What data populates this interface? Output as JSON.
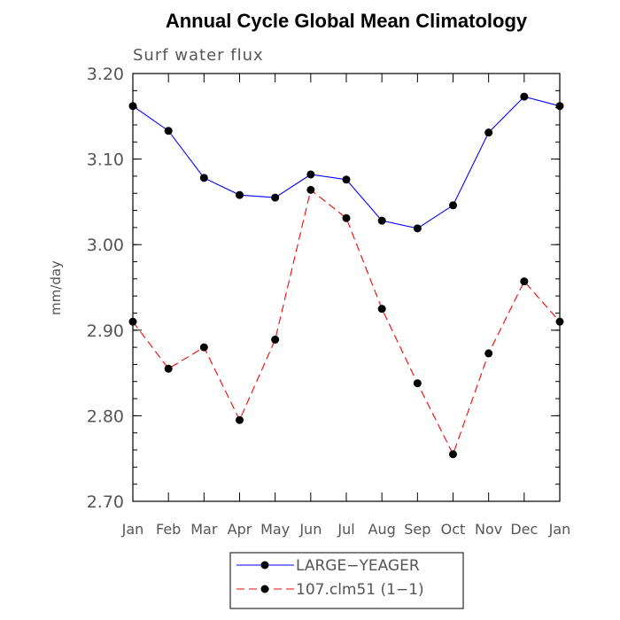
{
  "chart_data": {
    "type": "line",
    "title": "Annual Cycle Global Mean Climatology",
    "subtitle": "Surf water flux",
    "xlabel": "",
    "ylabel": "mm/day",
    "categories": [
      "Jan",
      "Feb",
      "Mar",
      "Apr",
      "May",
      "Jun",
      "Jul",
      "Aug",
      "Sep",
      "Oct",
      "Nov",
      "Dec",
      "Jan"
    ],
    "ylim": [
      2.7,
      3.2
    ],
    "yticks": [
      "2.70",
      "2.80",
      "2.90",
      "3.00",
      "3.10",
      "3.20"
    ],
    "grid": false,
    "legend_position": "bottom-center",
    "series": [
      {
        "name": "LARGE−YEAGER",
        "color": "#0000ff",
        "line_style": "solid",
        "values": [
          3.162,
          3.133,
          3.078,
          3.058,
          3.055,
          3.082,
          3.076,
          3.028,
          3.019,
          3.046,
          3.131,
          3.173,
          3.162
        ]
      },
      {
        "name": "107.clm51 (1−1)",
        "color": "#ff0000",
        "line_style": "dashed",
        "values": [
          2.91,
          2.855,
          2.88,
          2.795,
          2.889,
          3.064,
          3.031,
          2.925,
          2.838,
          2.755,
          2.873,
          2.957,
          2.91
        ]
      }
    ]
  }
}
